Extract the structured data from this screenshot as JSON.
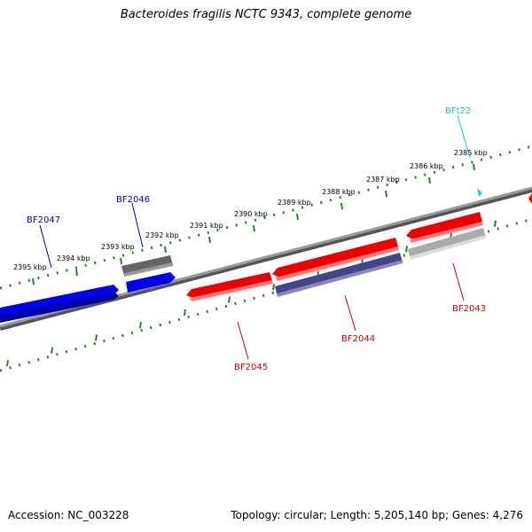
{
  "title": "Bacteroides fragilis NCTC 9343, complete genome",
  "footer": {
    "accession": "Accession: NC_003228",
    "summary": "Topology: circular; Length: 5,205,140 bp; Genes: 4,276"
  },
  "scale_labels": [
    "2395 kbp",
    "2394 kbp",
    "2393 kbp",
    "2392 kbp",
    "2391 kbp",
    "2390 kbp",
    "2389 kbp",
    "2388 kbp",
    "2387 kbp",
    "2386 kbp",
    "2385 kbp"
  ],
  "genes": [
    {
      "name": "BF2047",
      "color": "#0000aa",
      "fill": "#0000ee",
      "strand": "+"
    },
    {
      "name": "BF2046",
      "color": "#0000aa",
      "fill": "#0000ee",
      "strand": "+"
    },
    {
      "name": "BF2045",
      "color": "#cc0000",
      "fill": "#ee0000",
      "strand": "-"
    },
    {
      "name": "BF2044",
      "color": "#cc0000",
      "fill": "#ee0000",
      "strand": "-"
    },
    {
      "name": "BF2043",
      "color": "#cc0000",
      "fill": "#ee0000",
      "strand": "-"
    },
    {
      "name": "BFt22",
      "color": "#22bbdd",
      "fill": "#22ccee",
      "strand": "+"
    }
  ],
  "colors": {
    "backbone": "#808080",
    "scale_ticks": "#228822",
    "cds_gray": "#777777",
    "cds_purple": "#444488",
    "cds_lightgray": "#bbbbbb"
  }
}
